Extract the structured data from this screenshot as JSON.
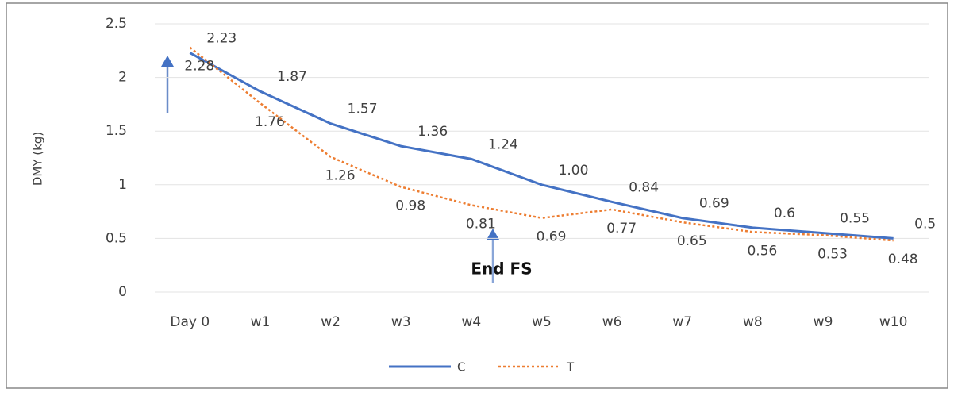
{
  "chart_data": {
    "type": "line",
    "y_label": "DMY (kg)",
    "annotation": "End FS",
    "categories": [
      "Day 0",
      "w1",
      "w2",
      "w3",
      "w4",
      "w5",
      "w6",
      "w7",
      "w8",
      "w9",
      "w10"
    ],
    "series": [
      {
        "name": "C",
        "color": "#4472c4",
        "style": "solid",
        "values": [
          2.23,
          1.87,
          1.57,
          1.36,
          1.24,
          1.0,
          0.84,
          0.69,
          0.6,
          0.55,
          0.5
        ],
        "value_labels": [
          "2.23",
          "1.87",
          "1.57",
          "1.36",
          "1.24",
          "1.00",
          "0.84",
          "0.69",
          "0.6",
          "0.55",
          "0.5"
        ]
      },
      {
        "name": "T",
        "color": "#ed7d31",
        "style": "dotted",
        "values": [
          2.28,
          1.76,
          1.26,
          0.98,
          0.81,
          0.69,
          0.77,
          0.65,
          0.56,
          0.53,
          0.48
        ]
      }
    ],
    "ylim": [
      0,
      2.5
    ],
    "yticks": [
      0,
      0.5,
      1,
      1.5,
      2,
      2.5
    ],
    "grid": true,
    "legend": "bottom"
  }
}
